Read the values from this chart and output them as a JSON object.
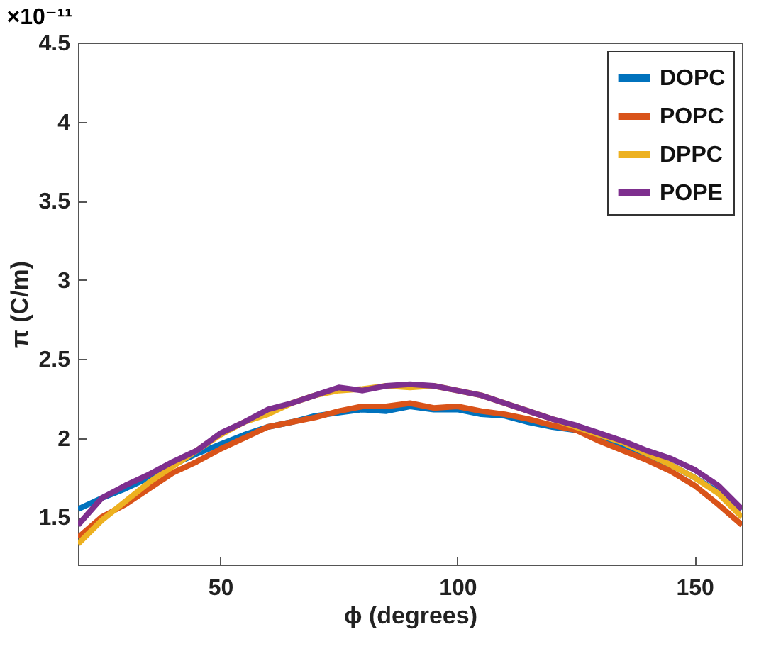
{
  "chart_data": {
    "type": "line",
    "xlabel": "ϕ (degrees)",
    "ylabel": "π (C/m)",
    "annotations": [
      "×10⁻¹¹"
    ],
    "x": [
      20,
      25,
      30,
      35,
      40,
      45,
      50,
      55,
      60,
      65,
      70,
      75,
      80,
      85,
      90,
      95,
      100,
      105,
      110,
      115,
      120,
      125,
      130,
      135,
      140,
      145,
      150,
      155,
      160
    ],
    "series": [
      {
        "name": "DOPC",
        "color": "#0072bd",
        "values": [
          1.55,
          1.62,
          1.68,
          1.75,
          1.83,
          1.9,
          1.96,
          2.02,
          2.07,
          2.1,
          2.14,
          2.16,
          2.18,
          2.17,
          2.2,
          2.18,
          2.18,
          2.15,
          2.14,
          2.1,
          2.07,
          2.05,
          2.0,
          1.95,
          1.88,
          1.83,
          1.75,
          1.66,
          1.55
        ]
      },
      {
        "name": "POPC",
        "color": "#d95319",
        "values": [
          1.37,
          1.5,
          1.58,
          1.68,
          1.78,
          1.85,
          1.93,
          2.0,
          2.07,
          2.1,
          2.13,
          2.17,
          2.2,
          2.2,
          2.22,
          2.19,
          2.2,
          2.17,
          2.15,
          2.12,
          2.08,
          2.05,
          1.98,
          1.92,
          1.86,
          1.79,
          1.7,
          1.58,
          1.45
        ]
      },
      {
        "name": "DPPC",
        "color": "#edb120",
        "values": [
          1.33,
          1.48,
          1.6,
          1.72,
          1.82,
          1.92,
          2.02,
          2.1,
          2.15,
          2.22,
          2.27,
          2.3,
          2.31,
          2.33,
          2.32,
          2.33,
          2.3,
          2.27,
          2.22,
          2.17,
          2.12,
          2.07,
          2.02,
          1.97,
          1.9,
          1.83,
          1.75,
          1.65,
          1.5
        ]
      },
      {
        "name": "POPE",
        "color": "#7e2f8e",
        "values": [
          1.45,
          1.62,
          1.7,
          1.77,
          1.85,
          1.92,
          2.03,
          2.1,
          2.18,
          2.22,
          2.27,
          2.32,
          2.3,
          2.33,
          2.34,
          2.33,
          2.3,
          2.27,
          2.22,
          2.17,
          2.12,
          2.08,
          2.03,
          1.98,
          1.92,
          1.87,
          1.8,
          1.7,
          1.55
        ]
      }
    ],
    "xlim": [
      20,
      160
    ],
    "xticks": [
      50,
      100,
      150
    ],
    "ylim": [
      1.2,
      4.5
    ],
    "yticks": [
      1.5,
      2,
      2.5,
      3,
      3.5,
      4,
      4.5
    ],
    "legend": "top right",
    "grid": false
  }
}
